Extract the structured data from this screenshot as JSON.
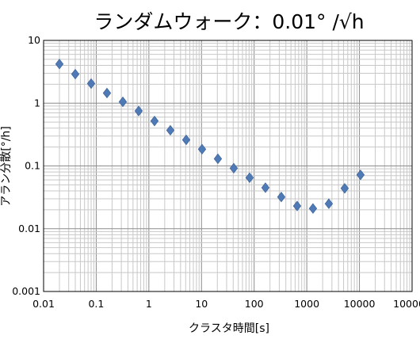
{
  "chart_data": {
    "type": "scatter",
    "title": "ランダムウォーク：0.01° /√h",
    "xlabel": "クラスタ時間[s]",
    "ylabel": "アラン分散[°/h]",
    "x_scale": "log",
    "y_scale": "log",
    "xlim": [
      0.01,
      100000
    ],
    "ylim": [
      0.001,
      10
    ],
    "x_tick_labels": [
      "0.01",
      "0.1",
      "1",
      "10",
      "100",
      "1000",
      "10000",
      "100000"
    ],
    "y_tick_labels": [
      "0.001",
      "0.01",
      "0.1",
      "1",
      "10"
    ],
    "grid": true,
    "marker": "diamond",
    "marker_color": "#4f7ab6",
    "series": [
      {
        "x": [
          0.02,
          0.04,
          0.08,
          0.16,
          0.32,
          0.64,
          1.28,
          2.56,
          5.12,
          10.24,
          20.48,
          40.96,
          81.92,
          163.84,
          327.68,
          655.36,
          1310.72,
          2621.44,
          5242.88,
          10485.76
        ],
        "y": [
          4.2,
          2.9,
          2.05,
          1.45,
          1.05,
          0.75,
          0.52,
          0.37,
          0.26,
          0.185,
          0.13,
          0.092,
          0.065,
          0.045,
          0.032,
          0.023,
          0.021,
          0.025,
          0.044,
          0.072
        ]
      }
    ]
  }
}
